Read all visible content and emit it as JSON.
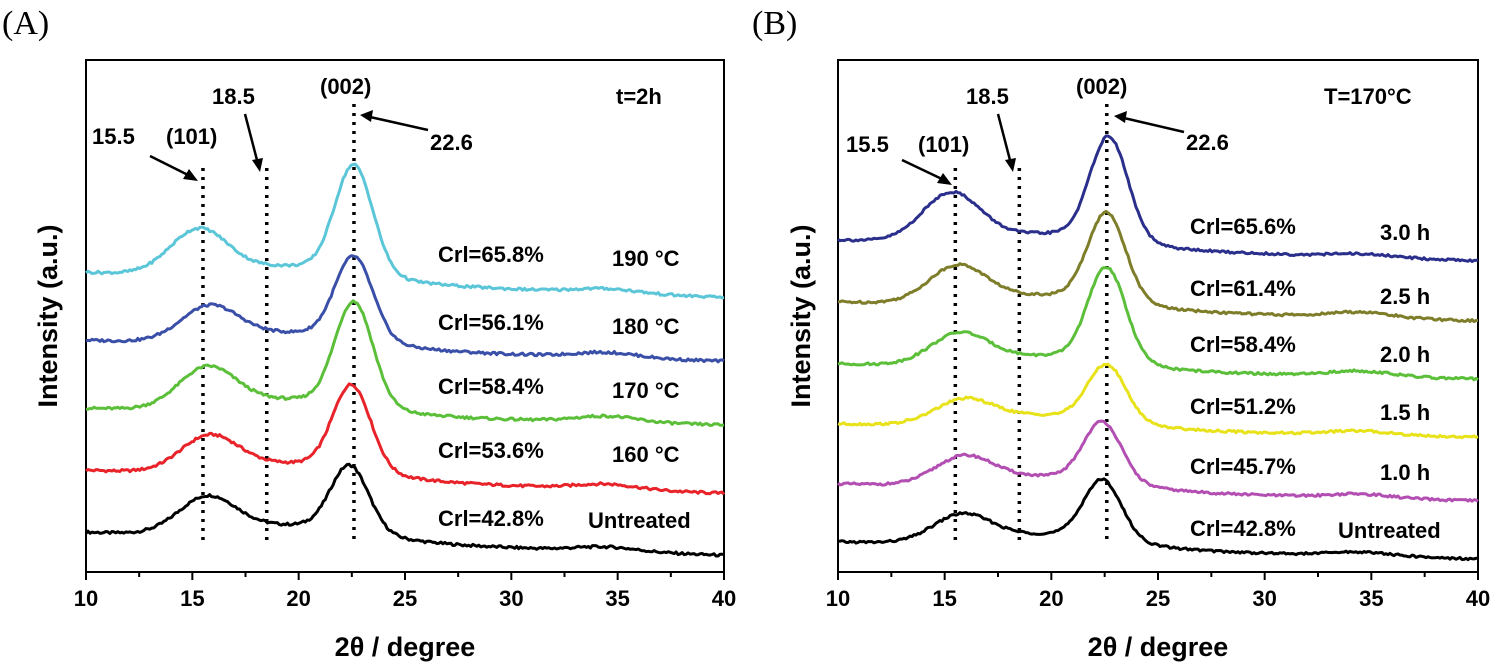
{
  "chart_data": [
    {
      "type": "line",
      "panel_label": "(A)",
      "title": "t=2h",
      "xlabel": "2θ / degree",
      "ylabel": "Intensity (a.u.)",
      "xlim": [
        10,
        40
      ],
      "xticks": [
        10,
        15,
        20,
        25,
        30,
        35,
        40
      ],
      "grid": false,
      "annotations": {
        "peak_101_label": "(101)",
        "peak_002_label": "(002)",
        "left_arrow_label": "15.5",
        "mid_arrow_label": "18.5",
        "right_arrow_label": "22.6"
      },
      "reference_lines_x": [
        15.5,
        18.5,
        22.6
      ],
      "series": [
        {
          "name": "Untreated",
          "crl": "Crl=42.8%",
          "color": "#000000",
          "offset": 0,
          "amp101": 0.85,
          "amp002": 1.55,
          "c101": 15.7,
          "c002": 22.4,
          "tail": 0.1
        },
        {
          "name": "160 °C",
          "crl": "Crl=53.6%",
          "color": "#e8232a",
          "offset": 1,
          "amp101": 0.82,
          "amp002": 2.0,
          "c101": 15.8,
          "c002": 22.5,
          "tail": 0.12
        },
        {
          "name": "170 °C",
          "crl": "Crl=58.4%",
          "color": "#5bbf3a",
          "offset": 2,
          "amp101": 0.95,
          "amp002": 2.45,
          "c101": 15.7,
          "c002": 22.6,
          "tail": 0.14
        },
        {
          "name": "180 °C",
          "crl": "Crl=56.1%",
          "color": "#3a4fa8",
          "offset": 3,
          "amp101": 0.8,
          "amp002": 1.95,
          "c101": 15.8,
          "c002": 22.6,
          "tail": 0.12
        },
        {
          "name": "190 °C",
          "crl": "Crl=65.8%",
          "color": "#5bc6d8",
          "offset": 4,
          "amp101": 1.05,
          "amp002": 2.55,
          "c101": 15.3,
          "c002": 22.6,
          "tail": 0.1
        }
      ]
    },
    {
      "type": "line",
      "panel_label": "(B)",
      "title": "T=170°C",
      "xlabel": "2θ / degree",
      "ylabel": "Intensity (a.u.)",
      "xlim": [
        10,
        40
      ],
      "xticks": [
        10,
        15,
        20,
        25,
        30,
        35,
        40
      ],
      "grid": false,
      "annotations": {
        "peak_101_label": "(101)",
        "peak_002_label": "(002)",
        "left_arrow_label": "15.5",
        "mid_arrow_label": "18.5",
        "right_arrow_label": "22.6"
      },
      "reference_lines_x": [
        15.5,
        18.5,
        22.6
      ],
      "series": [
        {
          "name": "Untreated",
          "crl": "Crl=42.8%",
          "color": "#000000",
          "offset": 0,
          "amp101": 0.7,
          "amp002": 1.55,
          "c101": 15.8,
          "c002": 22.4,
          "tail": 0.1
        },
        {
          "name": "1.0 h",
          "crl": "Crl=45.7%",
          "color": "#b34fb3",
          "offset": 1,
          "amp101": 0.7,
          "amp002": 1.55,
          "c101": 15.9,
          "c002": 22.4,
          "tail": 0.1
        },
        {
          "name": "1.5 h",
          "crl": "Crl=51.2%",
          "color": "#e8e21a",
          "offset": 2,
          "amp101": 0.6,
          "amp002": 1.45,
          "c101": 15.9,
          "c002": 22.6,
          "tail": 0.1
        },
        {
          "name": "2.0 h",
          "crl": "Crl=58.4%",
          "color": "#5bbf3a",
          "offset": 3,
          "amp101": 0.78,
          "amp002": 2.45,
          "c101": 15.7,
          "c002": 22.6,
          "tail": 0.14
        },
        {
          "name": "2.5 h",
          "crl": "Crl=61.4%",
          "color": "#7d7d2a",
          "offset": 4,
          "amp101": 0.95,
          "amp002": 2.3,
          "c101": 15.6,
          "c002": 22.6,
          "tail": 0.14
        },
        {
          "name": "3.0 h",
          "crl": "Crl=65.6%",
          "color": "#2b2f8c",
          "offset": 5,
          "amp101": 1.25,
          "amp002": 2.7,
          "c101": 15.3,
          "c002": 22.7,
          "tail": 0.08
        }
      ]
    }
  ]
}
